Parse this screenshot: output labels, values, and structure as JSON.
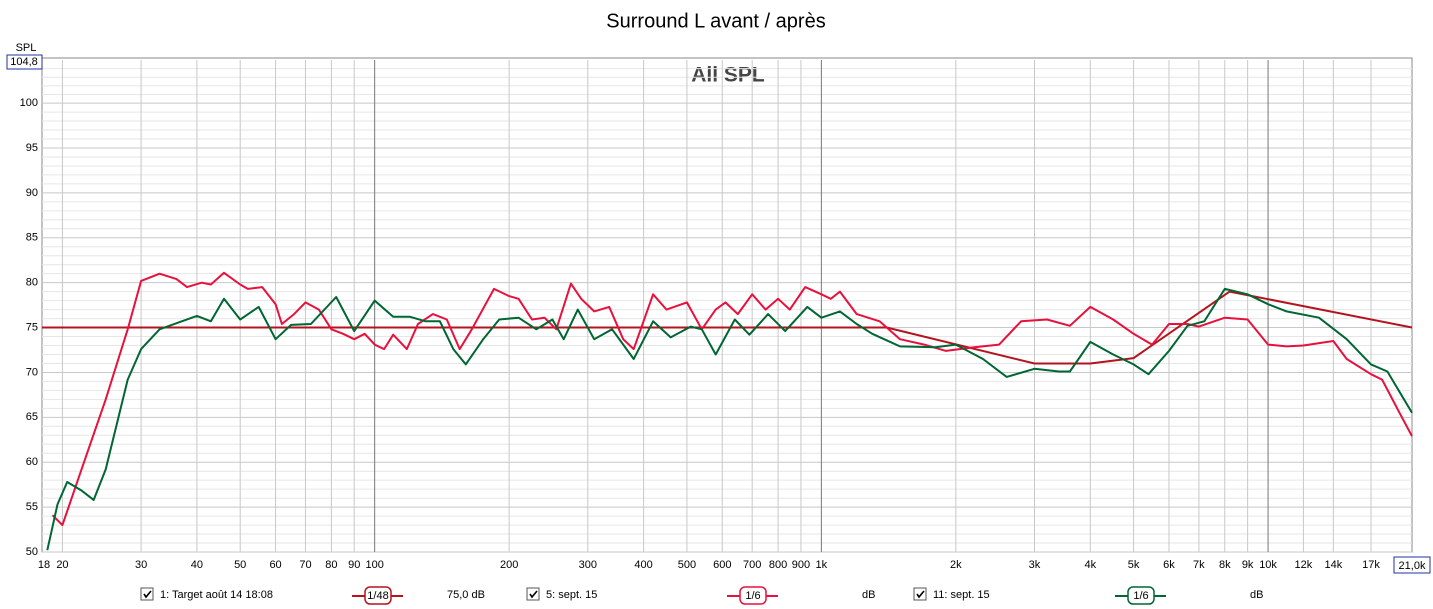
{
  "chart_data": {
    "type": "line",
    "title": "Surround L avant / après",
    "plot_label": "All SPL",
    "ylabel": "SPL",
    "xscale": "log",
    "grid": true,
    "xlim": [
      18,
      21000
    ],
    "ylim": [
      50,
      104.8
    ],
    "yticks": [
      50,
      55,
      60,
      65,
      70,
      75,
      80,
      85,
      90,
      95,
      100,
      {
        "value": 104.8,
        "label": "104,8"
      }
    ],
    "xticks": [
      18,
      20,
      30,
      40,
      50,
      60,
      70,
      80,
      90,
      100,
      200,
      300,
      400,
      500,
      600,
      700,
      800,
      900,
      {
        "value": 1000,
        "label": "1k"
      },
      {
        "value": 2000,
        "label": "2k"
      },
      {
        "value": 3000,
        "label": "3k"
      },
      {
        "value": 4000,
        "label": "4k"
      },
      {
        "value": 5000,
        "label": "5k"
      },
      {
        "value": 6000,
        "label": "6k"
      },
      {
        "value": 7000,
        "label": "7k"
      },
      {
        "value": 8000,
        "label": "8k"
      },
      {
        "value": 9000,
        "label": "9k"
      },
      {
        "value": 10000,
        "label": "10k"
      },
      {
        "value": 12000,
        "label": "12k"
      },
      {
        "value": 14000,
        "label": "14k"
      },
      {
        "value": 17000,
        "label": "17k"
      },
      {
        "value": 21000,
        "label": "21,0k"
      }
    ],
    "series": [
      {
        "name": "1: Target août 14 18:08",
        "color": "#b4141e",
        "smoothing": "1/48",
        "offset": "75,0 dB",
        "x": [
          18,
          1400,
          3000,
          4000,
          5000,
          8200,
          21000
        ],
        "values": [
          75,
          75,
          71,
          71,
          71.6,
          79,
          75
        ]
      },
      {
        "name": "5: sept. 15",
        "color": "#e8103c",
        "smoothing": "1/6",
        "offset": "dB",
        "x": [
          19,
          20,
          22,
          25,
          28,
          30,
          33,
          36,
          38,
          41,
          43,
          46,
          50,
          52,
          56,
          60,
          62,
          66,
          70,
          75,
          80,
          85,
          90,
          95,
          100,
          105,
          110,
          118,
          125,
          135,
          145,
          155,
          165,
          185,
          200,
          210,
          225,
          240,
          255,
          275,
          290,
          310,
          335,
          360,
          380,
          420,
          450,
          500,
          540,
          580,
          610,
          650,
          700,
          750,
          800,
          850,
          920,
          1000,
          1050,
          1100,
          1200,
          1350,
          1500,
          1700,
          1900,
          2200,
          2500,
          2800,
          3200,
          3600,
          4000,
          4500,
          5000,
          5500,
          6000,
          6600,
          7000,
          8000,
          9000,
          10000,
          11000,
          12000,
          14000,
          15000,
          17000,
          18000,
          19500,
          21000
        ],
        "values": [
          54.1,
          53,
          59,
          67,
          74.8,
          80.2,
          81,
          80.4,
          79.5,
          80,
          79.8,
          81.1,
          79.8,
          79.3,
          79.5,
          77.6,
          75.4,
          76.5,
          77.8,
          77,
          74.8,
          74.3,
          73.7,
          74.3,
          73.1,
          72.6,
          74.2,
          72.6,
          75.4,
          76.5,
          75.9,
          72.6,
          74.8,
          79.3,
          78.5,
          78.2,
          75.9,
          76.1,
          74.8,
          79.9,
          78.2,
          76.8,
          77.3,
          73.7,
          72.6,
          78.7,
          77,
          77.8,
          74.8,
          77,
          77.8,
          76.5,
          78.7,
          77,
          78.2,
          77,
          79.5,
          78.7,
          78.2,
          79,
          76.5,
          75.7,
          73.7,
          73.1,
          72.4,
          72.8,
          73.1,
          75.7,
          75.9,
          75.2,
          77.3,
          75.9,
          74.3,
          73.1,
          75.4,
          75.4,
          75.1,
          76.1,
          75.9,
          73.1,
          72.9,
          73,
          73.5,
          71.5,
          69.8,
          69.2,
          65.9,
          62.9
        ]
      },
      {
        "name": "11: sept. 15",
        "color": "#006633",
        "smoothing": "1/6",
        "offset": "dB",
        "x": [
          18.5,
          19.5,
          20.5,
          22,
          23.5,
          25,
          28,
          30,
          33,
          37,
          40,
          43,
          46,
          50,
          55,
          60,
          65,
          72,
          82,
          90,
          100,
          110,
          120,
          130,
          140,
          150,
          160,
          175,
          190,
          210,
          230,
          250,
          265,
          285,
          310,
          340,
          380,
          420,
          460,
          510,
          540,
          580,
          640,
          690,
          760,
          830,
          930,
          1000,
          1100,
          1200,
          1300,
          1500,
          1800,
          2000,
          2300,
          2600,
          3000,
          3400,
          3600,
          4000,
          4500,
          5000,
          5400,
          6000,
          6600,
          7200,
          8000,
          9000,
          10000,
          11000,
          13000,
          15000,
          17000,
          18500,
          21000
        ],
        "values": [
          50.2,
          55.3,
          57.8,
          56.9,
          55.8,
          59.2,
          69.2,
          72.6,
          74.8,
          75.7,
          76.3,
          75.7,
          78.2,
          75.9,
          77.3,
          73.7,
          75.3,
          75.4,
          78.4,
          74.6,
          78,
          76.2,
          76.2,
          75.7,
          75.7,
          72.6,
          70.9,
          73.7,
          75.9,
          76.1,
          74.8,
          75.9,
          73.7,
          77,
          73.7,
          74.8,
          71.5,
          75.7,
          73.9,
          75.1,
          74.8,
          72,
          75.9,
          74.2,
          76.5,
          74.6,
          77.3,
          76.1,
          76.8,
          75.4,
          74.3,
          72.9,
          72.8,
          73.1,
          71.5,
          69.5,
          70.4,
          70.1,
          70.1,
          73.4,
          72,
          70.9,
          69.8,
          72.4,
          75.2,
          75.7,
          79.3,
          78.7,
          77.6,
          76.8,
          76.1,
          73.7,
          70.9,
          70.1,
          65.5
        ]
      }
    ]
  }
}
